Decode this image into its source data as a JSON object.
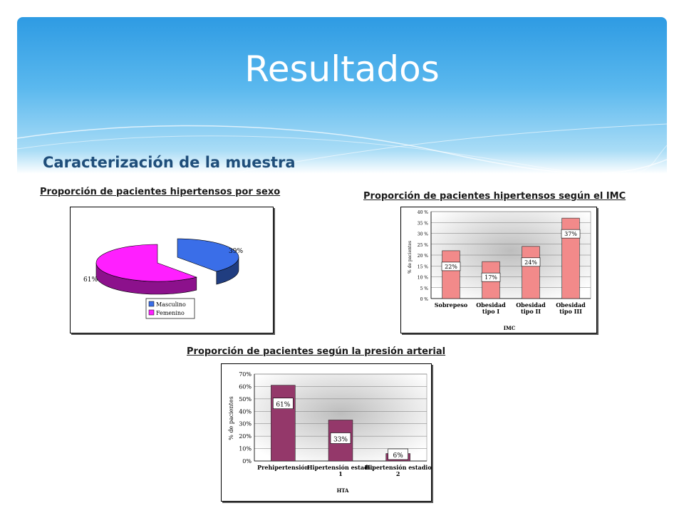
{
  "slide": {
    "title": "Resultados",
    "subtitle": "Caracterización de la muestra",
    "colors": {
      "header_top": "#2e9be3",
      "header_bottom": "#a9dcf6",
      "subtitle": "#1f4e7a"
    }
  },
  "chart_data": [
    {
      "type": "pie",
      "caption": "Proporción de pacientes hipertensos por sexo",
      "slices": [
        {
          "name": "Masculino",
          "value": 39,
          "label": "39%",
          "color": "#3a6ee8"
        },
        {
          "name": "Femenino",
          "value": 61,
          "label": "61%",
          "color": "#ff1fff"
        }
      ],
      "legend": "bottom-right"
    },
    {
      "type": "bar",
      "caption": "Proporción de pacientes hipertensos según el IMC",
      "categories": [
        "Sobrepeso",
        "Obesidad tipo I",
        "Obesidad tipo II",
        "Obesidad tipo III"
      ],
      "values": [
        22,
        17,
        24,
        37
      ],
      "data_labels": [
        "22%",
        "17%",
        "24%",
        "37%"
      ],
      "ylim": [
        0,
        40
      ],
      "yticks": [
        "0 %",
        "5 %",
        "10 %",
        "15 %",
        "20 %",
        "25 %",
        "30 %",
        "35 %",
        "40 %"
      ],
      "xlabel": "IMC",
      "ylabel": "% de pacientes",
      "bar_color": "#f28a8a",
      "grid": true
    },
    {
      "type": "bar",
      "caption": "Proporción de pacientes según la presión arterial",
      "categories": [
        "Prehipertensión",
        "Hipertensión estadio 1",
        "Hipertensión estadio 2"
      ],
      "values": [
        61,
        33,
        6
      ],
      "data_labels": [
        "61%",
        "33%",
        "6%"
      ],
      "ylim": [
        0,
        70
      ],
      "yticks": [
        "0%",
        "10%",
        "20%",
        "30%",
        "40%",
        "50%",
        "60%",
        "70%"
      ],
      "xlabel": "HTA",
      "ylabel": "% de pacientes",
      "bar_color": "#94386a",
      "grid": true
    }
  ]
}
